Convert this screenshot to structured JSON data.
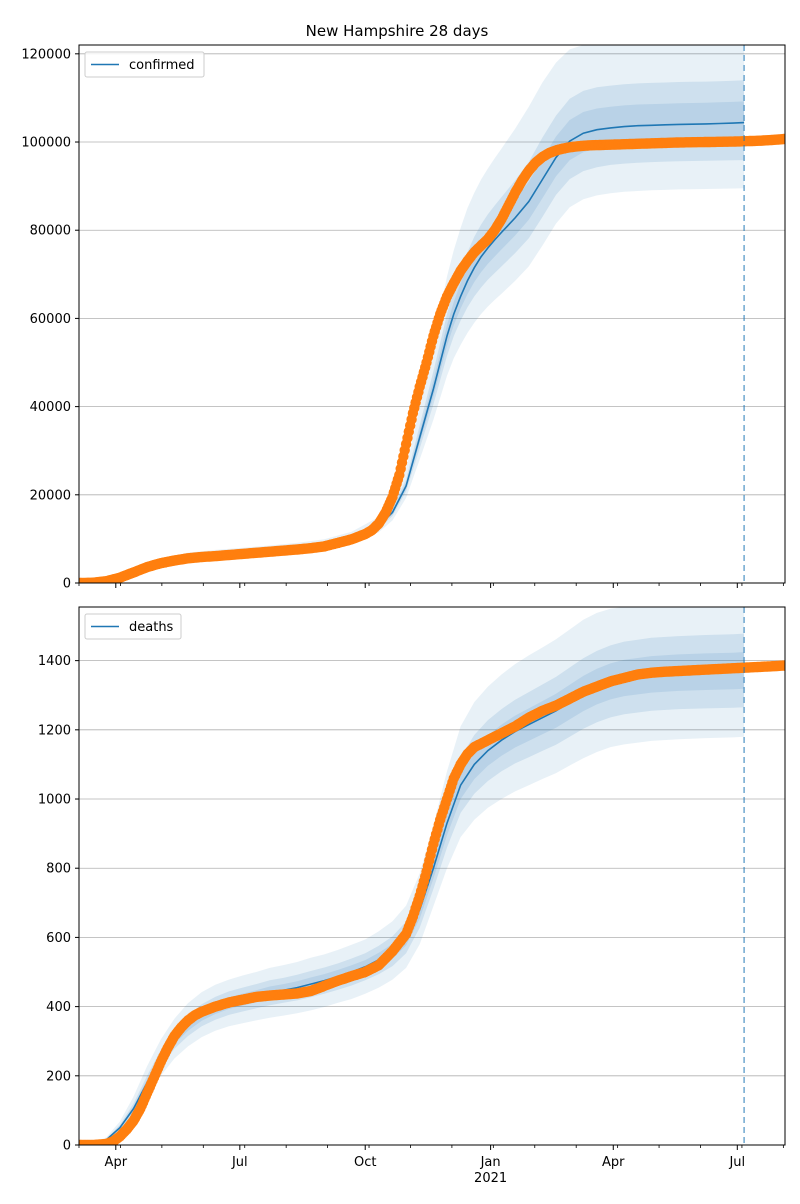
{
  "chart_data": [
    {
      "type": "line",
      "title": "New Hampshire 28 days",
      "legend": {
        "label": "confirmed",
        "placement": "top-left"
      },
      "ylim": [
        0,
        122000
      ],
      "yticks": [
        0,
        20000,
        40000,
        60000,
        80000,
        100000,
        120000
      ],
      "grid": "horizontal",
      "forecast_start_day": 488,
      "model": {
        "x_days": [
          0,
          10,
          20,
          40,
          60,
          80,
          100,
          120,
          140,
          160,
          180,
          200,
          220,
          230,
          240,
          250,
          260,
          265,
          270,
          275,
          280,
          285,
          290,
          295,
          300,
          305,
          310,
          320,
          330,
          340,
          350,
          360,
          370,
          380,
          390,
          400,
          410,
          420,
          430,
          440,
          450,
          460,
          470,
          480,
          488
        ],
        "median": [
          0,
          100,
          600,
          2500,
          4500,
          5700,
          6300,
          6800,
          7300,
          7900,
          8600,
          10000,
          13000,
          16000,
          22000,
          33000,
          44000,
          50000,
          56000,
          61000,
          65000,
          68500,
          71500,
          74000,
          76000,
          77800,
          79500,
          82800,
          86500,
          91500,
          96500,
          100200,
          102000,
          102800,
          103200,
          103500,
          103700,
          103800,
          103900,
          104000,
          104050,
          104100,
          104200,
          104300,
          104400
        ],
        "inner_low": [
          0,
          90,
          520,
          2200,
          4100,
          5200,
          5800,
          6300,
          6800,
          7400,
          8100,
          9400,
          12300,
          15200,
          20800,
          30500,
          40500,
          46000,
          51500,
          56000,
          59500,
          62500,
          65000,
          67000,
          68800,
          70300,
          71800,
          74800,
          78200,
          83000,
          88000,
          91600,
          93400,
          94300,
          94800,
          95100,
          95300,
          95450,
          95550,
          95650,
          95700,
          95750,
          95800,
          95850,
          95900
        ],
        "inner_high": [
          0,
          110,
          690,
          2850,
          4950,
          6250,
          6850,
          7350,
          7850,
          8450,
          9150,
          10700,
          13900,
          17100,
          23500,
          35800,
          48000,
          54500,
          61000,
          66500,
          71000,
          75000,
          78500,
          81300,
          83600,
          85600,
          87500,
          91300,
          95500,
          101000,
          106000,
          109800,
          111600,
          112400,
          112800,
          113100,
          113300,
          113400,
          113500,
          113600,
          113650,
          113700,
          113800,
          113900,
          114000
        ],
        "outer_low": [
          0,
          80,
          450,
          1900,
          3600,
          4700,
          5200,
          5700,
          6200,
          6800,
          7500,
          8800,
          11500,
          14200,
          19300,
          28000,
          37000,
          42000,
          47000,
          51000,
          54000,
          56700,
          59000,
          61000,
          62700,
          64200,
          65600,
          68500,
          71800,
          76500,
          81500,
          85200,
          87000,
          87900,
          88400,
          88700,
          88900,
          89050,
          89150,
          89250,
          89300,
          89350,
          89400,
          89450,
          89500
        ],
        "outer_high": [
          0,
          125,
          800,
          3300,
          5500,
          6900,
          7500,
          8000,
          8500,
          9100,
          9900,
          11600,
          15000,
          18700,
          26000,
          40000,
          54000,
          62000,
          69500,
          75500,
          80500,
          85000,
          88500,
          91500,
          94000,
          96300,
          98500,
          103000,
          108000,
          113500,
          118000,
          121000,
          122000,
          122000,
          122000,
          122000,
          122000,
          122000,
          122000,
          122000,
          122000,
          122000,
          122000,
          122000,
          122000
        ]
      },
      "observed": {
        "x_days": [
          0,
          10,
          20,
          30,
          40,
          50,
          60,
          70,
          80,
          90,
          100,
          110,
          120,
          130,
          140,
          150,
          160,
          170,
          180,
          190,
          200,
          210,
          215,
          220,
          225,
          230,
          235,
          240,
          245,
          250,
          255,
          260,
          265,
          270,
          275,
          280,
          285,
          290,
          295,
          300,
          305,
          310,
          315,
          320,
          325,
          330,
          335,
          340,
          345,
          350,
          355,
          360,
          365,
          370,
          375,
          380,
          390,
          400,
          410,
          420,
          430,
          440,
          450,
          460,
          470,
          480,
          490,
          500,
          510,
          518
        ],
        "values": [
          0,
          60,
          400,
          1200,
          2400,
          3600,
          4500,
          5100,
          5600,
          5900,
          6100,
          6350,
          6600,
          6850,
          7100,
          7350,
          7600,
          7900,
          8300,
          9100,
          9900,
          11100,
          12000,
          13500,
          16000,
          19500,
          24500,
          31500,
          38500,
          44500,
          50000,
          56000,
          61000,
          65000,
          68000,
          70800,
          73000,
          75000,
          76500,
          78000,
          80000,
          82500,
          85500,
          88500,
          91200,
          93500,
          95300,
          96600,
          97500,
          98100,
          98500,
          98800,
          99000,
          99150,
          99250,
          99300,
          99400,
          99500,
          99600,
          99700,
          99800,
          99900,
          99950,
          100000,
          100050,
          100100,
          100200,
          100300,
          100500,
          100700
        ]
      }
    },
    {
      "type": "line",
      "title": "",
      "legend": {
        "label": "deaths",
        "placement": "top-left"
      },
      "ylim": [
        0,
        1555
      ],
      "yticks": [
        0,
        200,
        400,
        600,
        800,
        1000,
        1200,
        1400
      ],
      "grid": "horizontal",
      "forecast_start_day": 488,
      "model": {
        "x_days": [
          0,
          10,
          20,
          30,
          40,
          50,
          60,
          70,
          80,
          90,
          100,
          110,
          120,
          130,
          140,
          150,
          160,
          170,
          180,
          190,
          200,
          210,
          220,
          230,
          240,
          250,
          260,
          270,
          280,
          290,
          300,
          310,
          320,
          330,
          340,
          350,
          360,
          370,
          380,
          390,
          400,
          420,
          440,
          460,
          480,
          488
        ],
        "median": [
          0,
          3,
          15,
          50,
          105,
          180,
          250,
          305,
          345,
          375,
          395,
          410,
          420,
          430,
          440,
          447,
          455,
          465,
          475,
          487,
          500,
          515,
          535,
          560,
          600,
          680,
          800,
          930,
          1040,
          1100,
          1140,
          1170,
          1195,
          1215,
          1235,
          1255,
          1280,
          1305,
          1325,
          1340,
          1350,
          1360,
          1365,
          1368,
          1370,
          1372
        ],
        "inner_low": [
          0,
          2,
          12,
          42,
          90,
          160,
          225,
          278,
          315,
          343,
          362,
          376,
          386,
          395,
          404,
          411,
          418,
          427,
          437,
          449,
          461,
          476,
          494,
          517,
          554,
          628,
          740,
          860,
          960,
          1015,
          1052,
          1080,
          1103,
          1121,
          1139,
          1157,
          1180,
          1203,
          1222,
          1236,
          1245,
          1255,
          1260,
          1262,
          1264,
          1265
        ],
        "inner_high": [
          0,
          4,
          18,
          58,
          120,
          200,
          275,
          332,
          375,
          407,
          428,
          444,
          455,
          465,
          476,
          483,
          492,
          503,
          513,
          525,
          539,
          554,
          576,
          603,
          646,
          732,
          860,
          1000,
          1120,
          1185,
          1228,
          1260,
          1287,
          1309,
          1331,
          1353,
          1380,
          1407,
          1428,
          1444,
          1455,
          1466,
          1471,
          1474,
          1476,
          1478
        ],
        "outer_low": [
          0,
          1,
          9,
          35,
          75,
          140,
          200,
          250,
          285,
          312,
          330,
          343,
          352,
          360,
          368,
          374,
          381,
          389,
          399,
          411,
          422,
          437,
          455,
          478,
          512,
          580,
          690,
          800,
          890,
          940,
          975,
          1000,
          1022,
          1040,
          1058,
          1075,
          1097,
          1118,
          1136,
          1150,
          1158,
          1168,
          1173,
          1176,
          1178,
          1180
        ],
        "outer_high": [
          0,
          6,
          22,
          68,
          140,
          228,
          305,
          365,
          410,
          442,
          463,
          478,
          490,
          500,
          512,
          520,
          529,
          541,
          551,
          564,
          579,
          594,
          618,
          647,
          692,
          785,
          925,
          1080,
          1210,
          1280,
          1325,
          1360,
          1390,
          1415,
          1438,
          1462,
          1490,
          1518,
          1538,
          1550,
          1555,
          1555,
          1555,
          1555,
          1555,
          1555
        ]
      },
      "observed": {
        "x_days": [
          0,
          10,
          20,
          25,
          30,
          35,
          40,
          45,
          50,
          55,
          60,
          65,
          70,
          75,
          80,
          85,
          90,
          100,
          110,
          120,
          130,
          140,
          150,
          160,
          170,
          180,
          190,
          200,
          210,
          220,
          230,
          240,
          245,
          250,
          255,
          260,
          265,
          270,
          275,
          280,
          285,
          290,
          300,
          310,
          320,
          330,
          340,
          350,
          360,
          370,
          380,
          390,
          400,
          410,
          420,
          430,
          440,
          450,
          460,
          470,
          480,
          490,
          500,
          510,
          518
        ],
        "values": [
          0,
          0,
          3,
          10,
          25,
          45,
          70,
          105,
          150,
          195,
          240,
          280,
          315,
          340,
          360,
          375,
          385,
          400,
          412,
          420,
          428,
          432,
          435,
          438,
          445,
          460,
          475,
          488,
          500,
          520,
          560,
          610,
          660,
          720,
          790,
          870,
          940,
          1000,
          1060,
          1100,
          1130,
          1150,
          1170,
          1190,
          1210,
          1235,
          1255,
          1270,
          1290,
          1310,
          1325,
          1340,
          1350,
          1360,
          1365,
          1368,
          1370,
          1372,
          1374,
          1376,
          1378,
          1380,
          1382,
          1384,
          1386
        ]
      }
    }
  ],
  "x_axis": {
    "domain_days": [
      0,
      518
    ],
    "major_ticks": [
      {
        "day": 27,
        "label": "Apr"
      },
      {
        "day": 118,
        "label": "Jul"
      },
      {
        "day": 210,
        "label": "Oct"
      },
      {
        "day": 302,
        "label": "Jan"
      },
      {
        "day": 392,
        "label": "Apr"
      },
      {
        "day": 483,
        "label": "Jul"
      }
    ],
    "year_label": {
      "day": 302,
      "label": "2021"
    }
  },
  "colors": {
    "model_line": "#1f77b4",
    "observed_points": "#ff7f0e",
    "band": "#1f77b4",
    "grid": "#b0b0b0"
  }
}
